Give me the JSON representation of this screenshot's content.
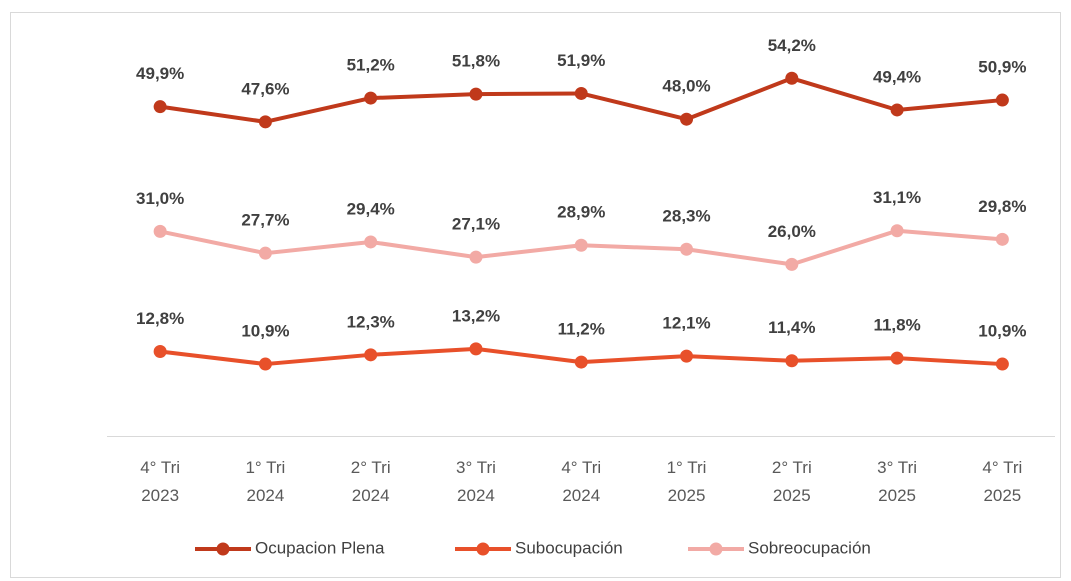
{
  "chart_data": {
    "type": "line",
    "categories": [
      "4° Tri 2023",
      "1° Tri 2024",
      "2° Tri 2024",
      "3° Tri 2024",
      "4° Tri 2024",
      "1° Tri 2025",
      "2° Tri 2025",
      "3° Tri 2025",
      "4° Tri 2025"
    ],
    "ylim": [
      0,
      60
    ],
    "legend": "bottom",
    "series": [
      {
        "name": "Ocupacion Plena",
        "color": "#c0391b",
        "values": [
          49.9,
          47.6,
          51.2,
          51.8,
          51.9,
          48.0,
          54.2,
          49.4,
          50.9
        ],
        "value_labels": [
          "49,9%",
          "47,6%",
          "51,2%",
          "51,8%",
          "51,9%",
          "48,0%",
          "54,2%",
          "49,4%",
          "50,9%"
        ]
      },
      {
        "name": "Subocupación",
        "color": "#e8502a",
        "values": [
          12.8,
          10.9,
          12.3,
          13.2,
          11.2,
          12.1,
          11.4,
          11.8,
          10.9
        ],
        "value_labels": [
          "12,8%",
          "10,9%",
          "12,3%",
          "13,2%",
          "11,2%",
          "12,1%",
          "11,4%",
          "11,8%",
          "10,9%"
        ]
      },
      {
        "name": "Sobreocupación",
        "color": "#f2aaa5",
        "values": [
          31.0,
          27.7,
          29.4,
          27.1,
          28.9,
          28.3,
          26.0,
          31.1,
          29.8
        ],
        "value_labels": [
          "31,0%",
          "27,7%",
          "29,4%",
          "27,1%",
          "28,9%",
          "28,3%",
          "26,0%",
          "31,1%",
          "29,8%"
        ]
      }
    ]
  }
}
